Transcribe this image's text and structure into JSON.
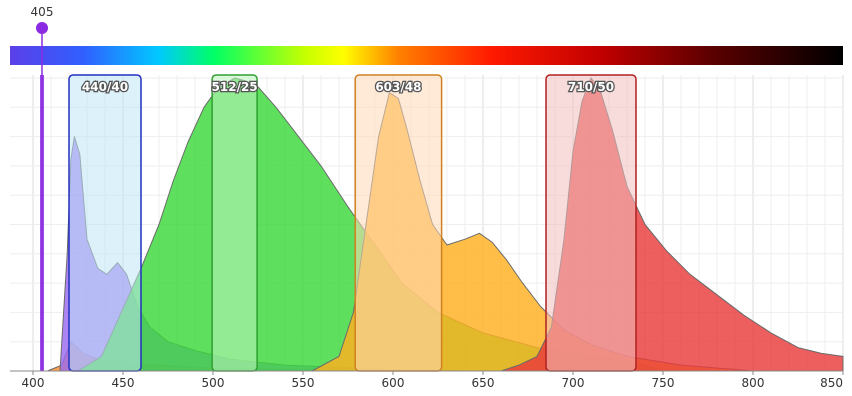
{
  "chart_data": {
    "type": "area",
    "title": "",
    "xlabel": "",
    "ylabel": "",
    "xlim": [
      400,
      850
    ],
    "ylim": [
      0,
      1
    ],
    "grid": true,
    "x_ticks": [
      "400",
      "450",
      "500",
      "550",
      "600",
      "650",
      "700",
      "750",
      "800",
      "850"
    ],
    "laser": {
      "label": "405",
      "wavelength": 405,
      "color": "#8a2be2"
    },
    "colorbar": {
      "stops": [
        {
          "wavelength": 400,
          "color": "#5b3fe8"
        },
        {
          "wavelength": 440,
          "color": "#3060ff"
        },
        {
          "wavelength": 480,
          "color": "#00c8ff"
        },
        {
          "wavelength": 510,
          "color": "#00ff66"
        },
        {
          "wavelength": 560,
          "color": "#c8ff00"
        },
        {
          "wavelength": 580,
          "color": "#ffff00"
        },
        {
          "wavelength": 610,
          "color": "#ff8000"
        },
        {
          "wavelength": 660,
          "color": "#ff1a00"
        },
        {
          "wavelength": 720,
          "color": "#c00000"
        },
        {
          "wavelength": 780,
          "color": "#5a0000"
        },
        {
          "wavelength": 850,
          "color": "#000000"
        }
      ]
    },
    "filters": [
      {
        "label": "440/40",
        "center": 440,
        "width": 40,
        "fill": "#bfe6f5",
        "stroke": "#2030c0"
      },
      {
        "label": "512/25",
        "center": 512,
        "width": 25,
        "fill": "#c0f5c0",
        "stroke": "#30a030"
      },
      {
        "label": "603/48",
        "center": 603,
        "width": 48,
        "fill": "#ffd9b8",
        "stroke": "#d08020"
      },
      {
        "label": "710/50",
        "center": 710,
        "width": 50,
        "fill": "#f2c0c0",
        "stroke": "#b02020"
      }
    ],
    "series": [
      {
        "color": "#ff8a2a",
        "points": [
          [
            408,
            0
          ],
          [
            416,
            0.02
          ],
          [
            421,
            0.1
          ],
          [
            428,
            0.06
          ],
          [
            440,
            0.03
          ],
          [
            470,
            0.02
          ],
          [
            500,
            0.01
          ],
          [
            550,
            0.005
          ],
          [
            600,
            0.002
          ],
          [
            620,
            0
          ]
        ]
      },
      {
        "color": "#9a6af0",
        "points": [
          [
            415,
            0
          ],
          [
            419,
            0.4
          ],
          [
            421,
            0.72
          ],
          [
            423,
            0.8
          ],
          [
            426,
            0.74
          ],
          [
            430,
            0.45
          ],
          [
            436,
            0.35
          ],
          [
            441,
            0.33
          ],
          [
            447,
            0.37
          ],
          [
            452,
            0.33
          ],
          [
            458,
            0.22
          ],
          [
            465,
            0.15
          ],
          [
            475,
            0.1
          ],
          [
            490,
            0.07
          ],
          [
            510,
            0.04
          ],
          [
            540,
            0.02
          ],
          [
            600,
            0.005
          ],
          [
            650,
            0
          ]
        ]
      },
      {
        "color": "#3ad93a",
        "points": [
          [
            425,
            0
          ],
          [
            438,
            0.05
          ],
          [
            460,
            0.35
          ],
          [
            470,
            0.5
          ],
          [
            478,
            0.65
          ],
          [
            486,
            0.78
          ],
          [
            495,
            0.9
          ],
          [
            502,
            0.96
          ],
          [
            508,
            0.985
          ],
          [
            512,
            1.0
          ],
          [
            518,
            0.99
          ],
          [
            525,
            0.97
          ],
          [
            535,
            0.9
          ],
          [
            545,
            0.82
          ],
          [
            560,
            0.7
          ],
          [
            575,
            0.56
          ],
          [
            590,
            0.43
          ],
          [
            605,
            0.3
          ],
          [
            625,
            0.2
          ],
          [
            650,
            0.13
          ],
          [
            680,
            0.08
          ],
          [
            710,
            0.05
          ],
          [
            740,
            0.02
          ],
          [
            752,
            0
          ]
        ]
      },
      {
        "color": "#ffb020",
        "points": [
          [
            555,
            0
          ],
          [
            570,
            0.05
          ],
          [
            578,
            0.2
          ],
          [
            585,
            0.5
          ],
          [
            592,
            0.8
          ],
          [
            598,
            0.95
          ],
          [
            603,
            0.93
          ],
          [
            608,
            0.82
          ],
          [
            615,
            0.65
          ],
          [
            622,
            0.5
          ],
          [
            630,
            0.43
          ],
          [
            640,
            0.45
          ],
          [
            648,
            0.47
          ],
          [
            655,
            0.44
          ],
          [
            663,
            0.38
          ],
          [
            672,
            0.3
          ],
          [
            682,
            0.22
          ],
          [
            695,
            0.14
          ],
          [
            710,
            0.09
          ],
          [
            730,
            0.05
          ],
          [
            760,
            0.02
          ],
          [
            790,
            0.005
          ],
          [
            800,
            0
          ]
        ]
      },
      {
        "color": "#e93a3a",
        "points": [
          [
            660,
            0
          ],
          [
            670,
            0.02
          ],
          [
            680,
            0.05
          ],
          [
            688,
            0.15
          ],
          [
            695,
            0.45
          ],
          [
            700,
            0.75
          ],
          [
            705,
            0.92
          ],
          [
            710,
            1.0
          ],
          [
            715,
            0.96
          ],
          [
            722,
            0.82
          ],
          [
            730,
            0.63
          ],
          [
            740,
            0.5
          ],
          [
            752,
            0.41
          ],
          [
            765,
            0.33
          ],
          [
            780,
            0.26
          ],
          [
            795,
            0.19
          ],
          [
            810,
            0.13
          ],
          [
            825,
            0.08
          ],
          [
            838,
            0.06
          ],
          [
            850,
            0.05
          ]
        ]
      }
    ]
  }
}
